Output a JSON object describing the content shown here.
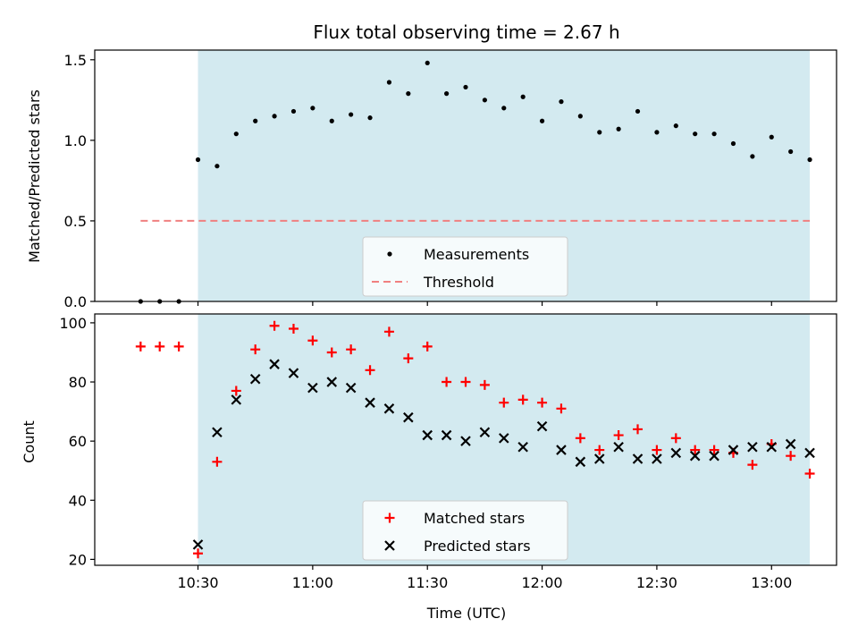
{
  "chart_data": {
    "type": "scatter",
    "title": "Flux total observing time = 2.67 h",
    "xlabel": "Time (UTC)",
    "x_ticks": [
      "10:30",
      "11:00",
      "11:30",
      "12:00",
      "12:30",
      "13:00"
    ],
    "shaded_region": {
      "start": "10:30",
      "end": "13:10",
      "color": "#d3eaf0"
    },
    "times": [
      "10:15",
      "10:20",
      "10:25",
      "10:30",
      "10:35",
      "10:40",
      "10:45",
      "10:50",
      "10:55",
      "11:00",
      "11:05",
      "11:10",
      "11:15",
      "11:20",
      "11:25",
      "11:30",
      "11:35",
      "11:40",
      "11:45",
      "11:50",
      "11:55",
      "12:00",
      "12:05",
      "12:10",
      "12:15",
      "12:20",
      "12:25",
      "12:30",
      "12:35",
      "12:40",
      "12:45",
      "12:50",
      "12:55",
      "13:00",
      "13:05",
      "13:10"
    ],
    "top_panel": {
      "ylabel": "Matched/Predicted stars",
      "ylim": [
        0,
        1.56
      ],
      "y_ticks": [
        "0.0",
        "0.5",
        "1.0",
        "1.5"
      ],
      "threshold": 0.5,
      "series": [
        {
          "name": "Measurements",
          "color": "#000000",
          "marker": "dot",
          "values": [
            0.0,
            0.0,
            0.0,
            0.88,
            0.84,
            1.04,
            1.12,
            1.15,
            1.18,
            1.2,
            1.12,
            1.16,
            1.14,
            1.36,
            1.29,
            1.48,
            1.29,
            1.33,
            1.25,
            1.2,
            1.27,
            1.12,
            1.24,
            1.15,
            1.05,
            1.07,
            1.18,
            1.05,
            1.09,
            1.04,
            1.04,
            0.98,
            0.9,
            1.02,
            0.93,
            0.88
          ]
        },
        {
          "name": "Threshold",
          "color": "#f08080",
          "marker": "dashed-line"
        }
      ],
      "legend_position": "lower-center"
    },
    "bottom_panel": {
      "ylabel": "Count",
      "ylim": [
        18,
        103
      ],
      "y_ticks": [
        "20",
        "40",
        "60",
        "80",
        "100"
      ],
      "series": [
        {
          "name": "Matched stars",
          "color": "#ff0000",
          "marker": "plus",
          "values": [
            92,
            92,
            92,
            22,
            53,
            77,
            91,
            99,
            98,
            94,
            90,
            91,
            84,
            97,
            88,
            92,
            80,
            80,
            79,
            73,
            74,
            73,
            71,
            61,
            57,
            62,
            64,
            57,
            61,
            57,
            57,
            56,
            52,
            59,
            55,
            49
          ]
        },
        {
          "name": "Predicted stars",
          "color": "#000000",
          "marker": "x",
          "values": [
            null,
            null,
            null,
            25,
            63,
            74,
            81,
            86,
            83,
            78,
            80,
            78,
            73,
            71,
            68,
            62,
            62,
            60,
            63,
            61,
            58,
            65,
            57,
            53,
            54,
            58,
            54,
            54,
            56,
            55,
            55,
            57,
            58,
            58,
            59,
            56
          ]
        }
      ],
      "legend_position": "lower-center"
    }
  }
}
